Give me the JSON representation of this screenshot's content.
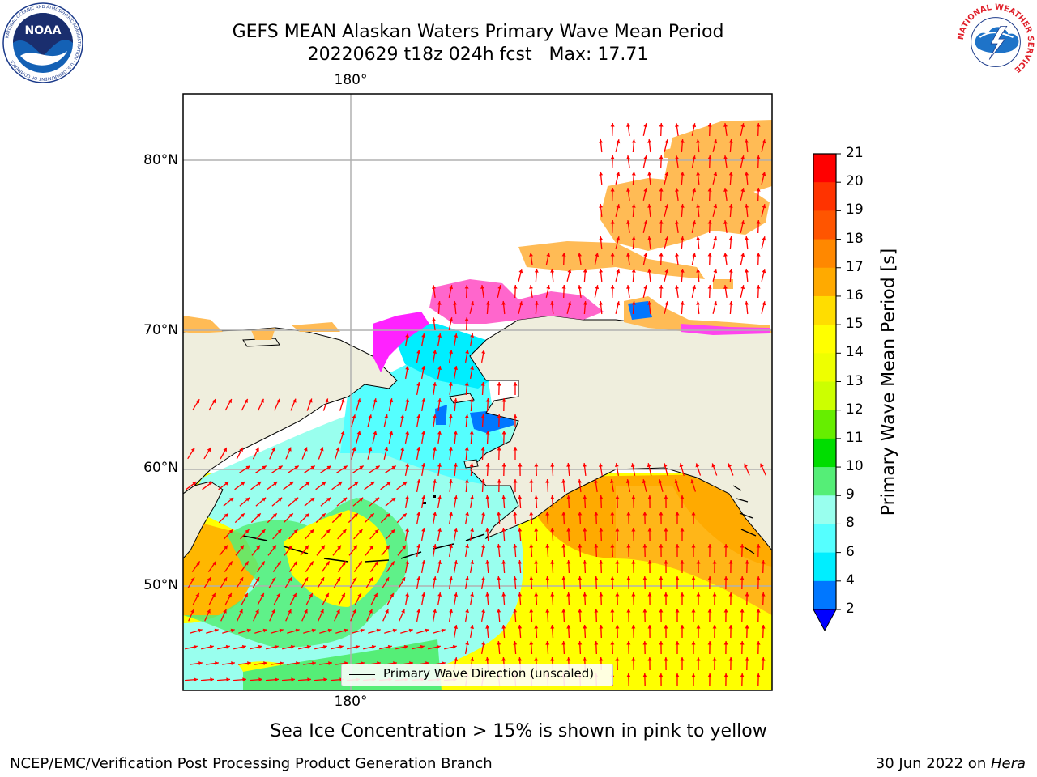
{
  "header": {
    "title_line1": "GEFS MEAN Alaskan Waters Primary Wave Mean Period",
    "title_line2": "20220629 t18z 024h fcst   Max: 17.71"
  },
  "logos": {
    "left": {
      "wordmark": "NOAA",
      "ring_text": "NATIONAL OCEANIC AND ATMOSPHERIC ADMINISTRATION · U.S. DEPARTMENT OF COMMERCE"
    },
    "right": {
      "ring_text": "NATIONAL WEATHER SERVICE"
    }
  },
  "map": {
    "lon_label_top": "180°",
    "lon_label_bottom": "180°",
    "lat_labels": [
      "80°N",
      "70°N",
      "60°N",
      "50°N"
    ],
    "legend_label": "Primary Wave Direction (unscaled)",
    "colors": {
      "land": "#efeedd",
      "ice_pink": "#ff66cc",
      "ice_magenta": "#ff22ff",
      "ice_orange": "#ffbb55",
      "grid": "#b0b0b0",
      "arrow": "#ff0000"
    }
  },
  "colorbar": {
    "label": "Primary Wave Mean Period [s]",
    "ticks": [
      "21",
      "20",
      "19",
      "18",
      "17",
      "16",
      "15",
      "14",
      "13",
      "12",
      "11",
      "10",
      "9",
      "8",
      "6",
      "4",
      "2"
    ],
    "colors": [
      "#ff0000",
      "#ff3300",
      "#ff5500",
      "#ff8800",
      "#ffaa00",
      "#ffdd00",
      "#ffff00",
      "#eeff00",
      "#ccff00",
      "#66ee00",
      "#00dd00",
      "#55ee77",
      "#99ffee",
      "#55ffff",
      "#00eeff",
      "#0077ff"
    ],
    "under_color": "#0000ff"
  },
  "subtitle": "Sea Ice Concentration > 15% is shown in pink to yellow",
  "footer": {
    "left": "NCEP/EMC/Verification Post Processing Product Generation Branch",
    "right_prefix": "30 Jun 2022 on ",
    "right_host": "Hera"
  }
}
